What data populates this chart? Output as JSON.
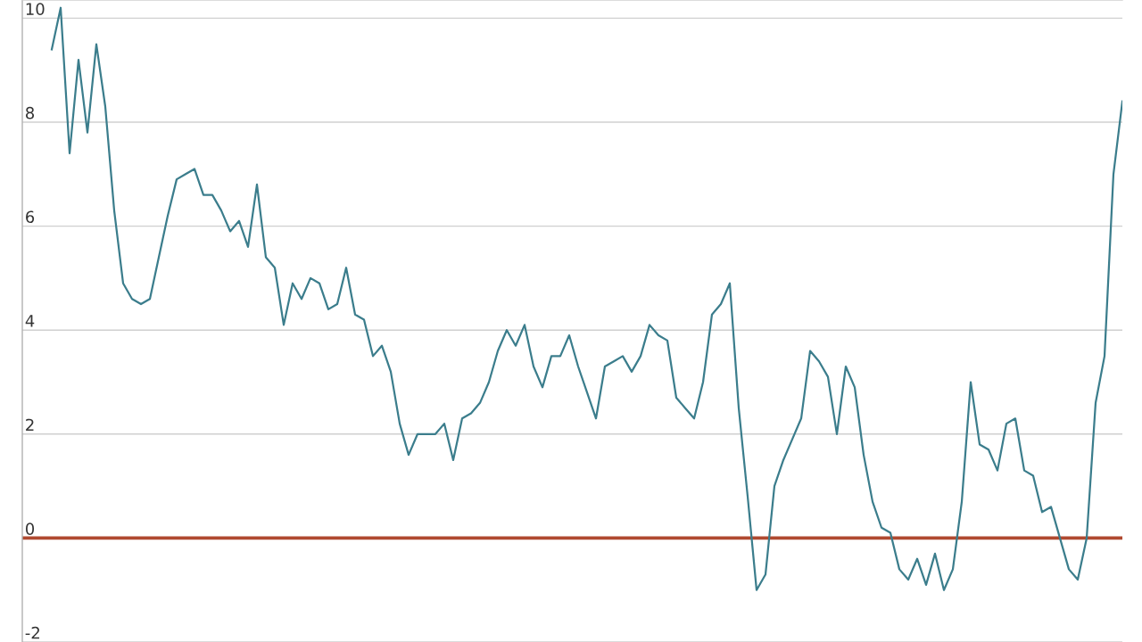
{
  "chart_data": {
    "type": "line",
    "categories": [
      null,
      null,
      null,
      null,
      null,
      null,
      null,
      null,
      null,
      null,
      null,
      null,
      null,
      null,
      null,
      null,
      null,
      null,
      null,
      null,
      null,
      null,
      null,
      null,
      null,
      null,
      null,
      null,
      null,
      null,
      null,
      null,
      null,
      null,
      null,
      null,
      null,
      null,
      null,
      null,
      null,
      null,
      null,
      null,
      null,
      null,
      null,
      null,
      null,
      null,
      null,
      null,
      null,
      null,
      null,
      null,
      null,
      null,
      null,
      null,
      null,
      null,
      null,
      null,
      null,
      null,
      null,
      null,
      null,
      null,
      null,
      null,
      null,
      null,
      null,
      null,
      null,
      null,
      null,
      null,
      null,
      null,
      null,
      null,
      null,
      null,
      null,
      null,
      null,
      null,
      null,
      null,
      null,
      null,
      null,
      null,
      null,
      null,
      null,
      null,
      null,
      null,
      null,
      null,
      null,
      null,
      null,
      null,
      null,
      null,
      null,
      null,
      null,
      null,
      null,
      null,
      null,
      null,
      null,
      null,
      null
    ],
    "series": [
      {
        "color": "#3b7d8c",
        "values": [
          9.4,
          10.2,
          7.4,
          9.2,
          7.8,
          9.5,
          8.3,
          6.3,
          4.9,
          4.6,
          4.5,
          4.6,
          5.4,
          6.2,
          6.9,
          7.0,
          7.1,
          6.6,
          6.6,
          6.3,
          5.9,
          6.1,
          5.6,
          6.8,
          5.4,
          5.2,
          4.1,
          4.9,
          4.6,
          5.0,
          4.9,
          4.4,
          4.5,
          5.2,
          4.3,
          4.2,
          3.5,
          3.7,
          3.2,
          2.2,
          1.6,
          2.0,
          2.0,
          2.0,
          2.2,
          1.5,
          2.3,
          2.4,
          2.6,
          3.0,
          3.6,
          4.0,
          3.7,
          4.1,
          3.3,
          2.9,
          3.5,
          3.5,
          3.9,
          3.3,
          2.8,
          2.3,
          3.3,
          3.4,
          3.5,
          3.2,
          3.5,
          4.1,
          3.9,
          3.8,
          2.7,
          2.5,
          2.3,
          3.0,
          4.3,
          4.5,
          4.9,
          2.5,
          0.8,
          -1.0,
          -0.7,
          1.0,
          1.5,
          1.9,
          2.3,
          3.6,
          3.4,
          3.1,
          2.0,
          3.3,
          2.9,
          1.6,
          0.7,
          0.2,
          0.1,
          -0.6,
          -0.8,
          -0.4,
          -0.9,
          -0.3,
          -1.0,
          -0.6,
          0.7,
          3.0,
          1.8,
          1.7,
          1.3,
          2.2,
          2.3,
          1.3,
          1.2,
          0.5,
          0.6,
          0.0,
          -0.6,
          -0.8,
          0.0,
          2.6,
          3.5,
          7.0,
          8.4
        ]
      }
    ],
    "ylim": [
      -2,
      10.35
    ],
    "yticks": [
      -2,
      0,
      2,
      4,
      6,
      8,
      10
    ],
    "grid": "y",
    "marker": "none",
    "line_style": "solid",
    "ref_lines": [
      {
        "axis": "y",
        "value": 0,
        "color": "#b04a30",
        "line_style": "solid"
      }
    ]
  }
}
